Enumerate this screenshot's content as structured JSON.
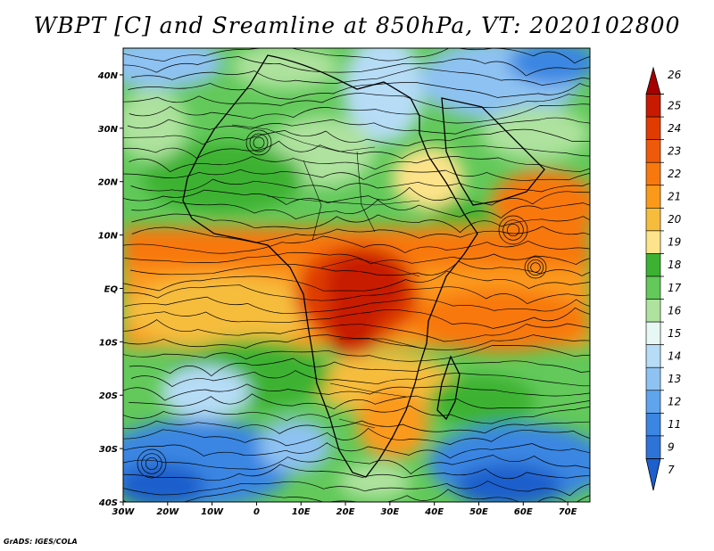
{
  "title": "WBPT [C] and Sreamline at 850hPa, VT: 2020102800",
  "credit": "GrADS: IGES/COLA",
  "map": {
    "lon_range": [
      -30,
      75
    ],
    "lat_range": [
      -40,
      45
    ],
    "lon_ticks": [
      {
        "value": -30,
        "label": "30W"
      },
      {
        "value": -20,
        "label": "20W"
      },
      {
        "value": -10,
        "label": "10W"
      },
      {
        "value": 0,
        "label": "0"
      },
      {
        "value": 10,
        "label": "10E"
      },
      {
        "value": 20,
        "label": "20E"
      },
      {
        "value": 30,
        "label": "30E"
      },
      {
        "value": 40,
        "label": "40E"
      },
      {
        "value": 50,
        "label": "50E"
      },
      {
        "value": 60,
        "label": "60E"
      },
      {
        "value": 70,
        "label": "70E"
      }
    ],
    "lat_ticks": [
      {
        "value": 40,
        "label": "40N"
      },
      {
        "value": 30,
        "label": "30N"
      },
      {
        "value": 20,
        "label": "20N"
      },
      {
        "value": 10,
        "label": "10N"
      },
      {
        "value": 0,
        "label": "EQ"
      },
      {
        "value": -10,
        "label": "10S"
      },
      {
        "value": -20,
        "label": "20S"
      },
      {
        "value": -30,
        "label": "30S"
      },
      {
        "value": -40,
        "label": "40S"
      }
    ]
  },
  "colorbar": {
    "levels": [
      {
        "label": "26",
        "color": "#a50000"
      },
      {
        "label": "25",
        "color": "#c81a00"
      },
      {
        "label": "24",
        "color": "#e03c00"
      },
      {
        "label": "23",
        "color": "#ee5a0a"
      },
      {
        "label": "22",
        "color": "#f8780e"
      },
      {
        "label": "21",
        "color": "#fb9a1a"
      },
      {
        "label": "20",
        "color": "#f6bd3c"
      },
      {
        "label": "19",
        "color": "#fde38a"
      },
      {
        "label": "18",
        "color": "#3cb232"
      },
      {
        "label": "17",
        "color": "#62c95a"
      },
      {
        "label": "16",
        "color": "#aee29e"
      },
      {
        "label": "15",
        "color": "#e6f7f4"
      },
      {
        "label": "14",
        "color": "#b6dcf6"
      },
      {
        "label": "13",
        "color": "#8ec2f2"
      },
      {
        "label": "12",
        "color": "#5fa4ec"
      },
      {
        "label": "11",
        "color": "#3a86e2"
      },
      {
        "label": "9",
        "color": "#2e74d8"
      },
      {
        "label": "7",
        "color": "#1d5fcc"
      }
    ]
  }
}
